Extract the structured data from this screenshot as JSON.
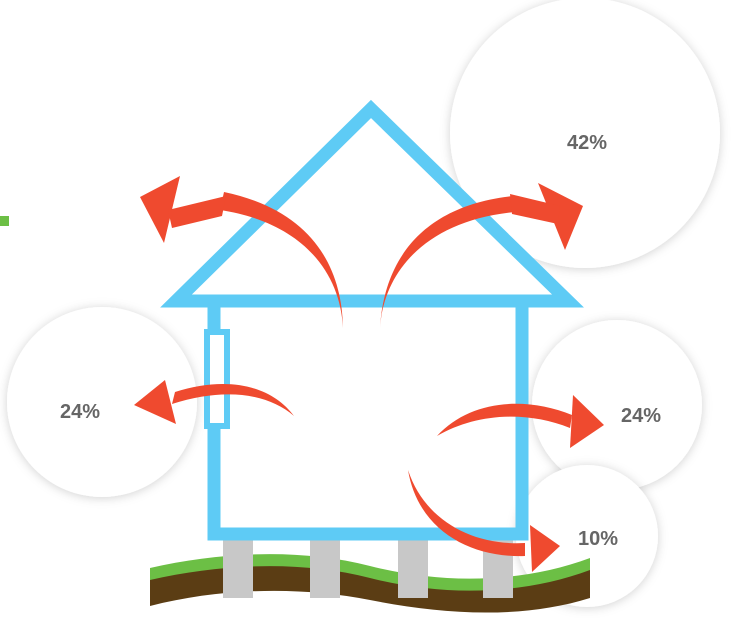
{
  "diagram": {
    "labels": {
      "roof": "42%",
      "wall_left": "24%",
      "wall_right": "24%",
      "floor": "10%"
    },
    "colors": {
      "house_outline": "#5ecbf5",
      "arrow": "#ef4a2f",
      "grass": "#6cbf45",
      "soil": "#5b3d14",
      "pillar": "#c8c8c8",
      "bubble": "#ffffff",
      "label_text": "#666666",
      "accent_mark": "#6cbf45"
    }
  }
}
